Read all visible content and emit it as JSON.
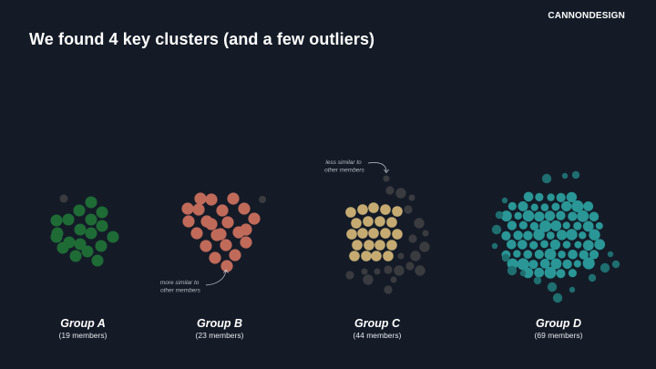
{
  "slide": {
    "title": "We found 4 key clusters (and a few outliers)",
    "logo": "CANNONDESIGN"
  },
  "colors": {
    "background": "#141b27",
    "group_a": "#1f6b36",
    "group_b": "#c06a5a",
    "group_c": "#c5ab72",
    "group_d": "#2a9696",
    "group_d_dim": "#1f6e70",
    "outlier": "#3a3b3f"
  },
  "annotations": {
    "less_similar": [
      "less similar to",
      "other members"
    ],
    "more_similar": [
      "more similar to",
      "other members"
    ]
  },
  "groups": [
    {
      "name": "Group A",
      "members_label": "(19 members)",
      "members": 19
    },
    {
      "name": "Group B",
      "members_label": "(23 members)",
      "members": 23
    },
    {
      "name": "Group C",
      "members_label": "(44 members)",
      "members": 44
    },
    {
      "name": "Group D",
      "members_label": "(69 members)",
      "members": 69
    }
  ]
}
